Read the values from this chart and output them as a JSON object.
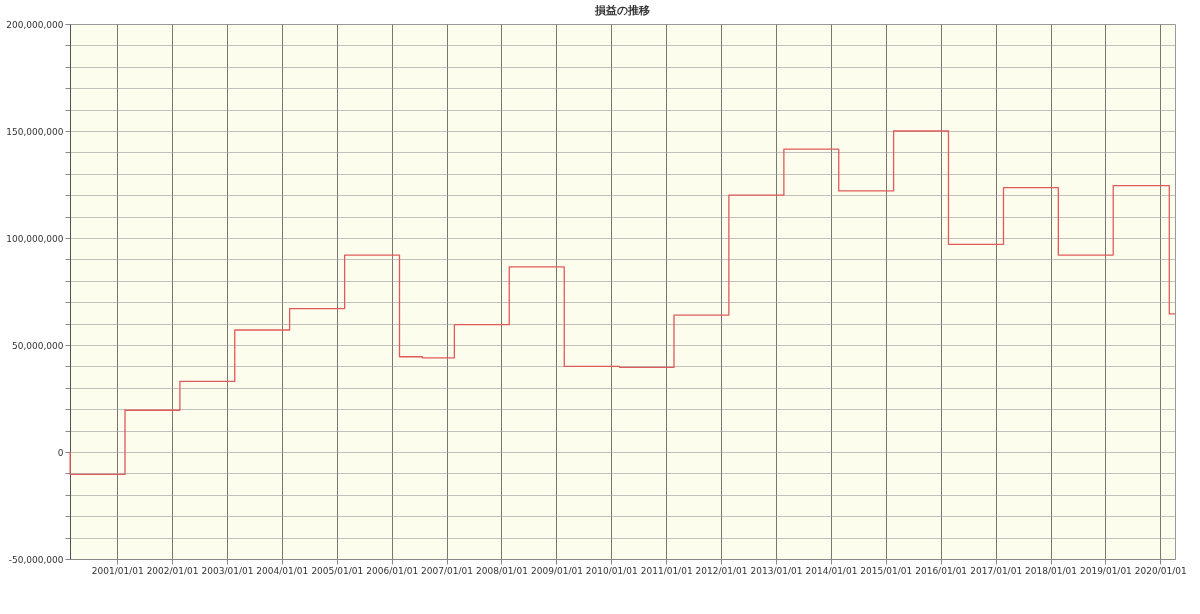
{
  "chart_data": {
    "type": "step",
    "title": "損益の推移",
    "x": [
      "2000-02-22",
      "2000-02-23",
      "2001-02-22",
      "2002-02-22",
      "2003-02-22",
      "2004-02-22",
      "2005-02-22",
      "2006-02-22",
      "2006-07-24",
      "2007-02-22",
      "2008-02-22",
      "2009-02-22",
      "2010-02-26",
      "2011-02-22",
      "2012-02-22",
      "2013-02-22",
      "2014-02-22",
      "2015-02-22",
      "2016-02-22",
      "2017-02-22",
      "2018-02-22",
      "2019-02-22",
      "2020-03-01",
      "2020-04-08"
    ],
    "series": [
      {
        "color": "#e05a5a",
        "values": [
          0,
          -10500000,
          19500000,
          33000000,
          57000000,
          67000000,
          92000000,
          44500000,
          44000000,
          59500000,
          86500000,
          40000000,
          39500000,
          64000000,
          120000000,
          141500000,
          122000000,
          150000000,
          97000000,
          123500000,
          92000000,
          124500000,
          64500000,
          64500000
        ]
      }
    ],
    "xlim": [
      "2000-02-22",
      "2020-04-08"
    ],
    "xticks": [
      {
        "value": "2001-01-01",
        "label": "2001/01/01"
      },
      {
        "value": "2002-01-01",
        "label": "2002/01/01"
      },
      {
        "value": "2003-01-01",
        "label": "2003/01/01"
      },
      {
        "value": "2004-01-01",
        "label": "2004/01/01"
      },
      {
        "value": "2005-01-01",
        "label": "2005/01/01"
      },
      {
        "value": "2006-01-01",
        "label": "2006/01/01"
      },
      {
        "value": "2007-01-01",
        "label": "2007/01/01"
      },
      {
        "value": "2008-01-01",
        "label": "2008/01/01"
      },
      {
        "value": "2009-01-01",
        "label": "2009/01/01"
      },
      {
        "value": "2010-01-01",
        "label": "2010/01/01"
      },
      {
        "value": "2011-01-01",
        "label": "2011/01/01"
      },
      {
        "value": "2012-01-01",
        "label": "2012/01/01"
      },
      {
        "value": "2013-01-01",
        "label": "2013/01/01"
      },
      {
        "value": "2014-01-01",
        "label": "2014/01/01"
      },
      {
        "value": "2015-01-01",
        "label": "2015/01/01"
      },
      {
        "value": "2016-01-01",
        "label": "2016/01/01"
      },
      {
        "value": "2017-01-01",
        "label": "2017/01/01"
      },
      {
        "value": "2018-01-01",
        "label": "2018/01/01"
      },
      {
        "value": "2019-01-01",
        "label": "2019/01/01"
      },
      {
        "value": "2020-01-01",
        "label": "2020/01/01"
      }
    ],
    "ylim": [
      -50000000,
      200000000
    ],
    "yticks": [
      {
        "value": -50000000,
        "label": "-50,000,000"
      },
      {
        "value": -40000000,
        "label": null
      },
      {
        "value": -30000000,
        "label": null
      },
      {
        "value": -20000000,
        "label": null
      },
      {
        "value": -10000000,
        "label": null
      },
      {
        "value": 0,
        "label": "0"
      },
      {
        "value": 10000000,
        "label": null
      },
      {
        "value": 20000000,
        "label": null
      },
      {
        "value": 30000000,
        "label": null
      },
      {
        "value": 40000000,
        "label": null
      },
      {
        "value": 50000000,
        "label": "50,000,000"
      },
      {
        "value": 60000000,
        "label": null
      },
      {
        "value": 70000000,
        "label": null
      },
      {
        "value": 80000000,
        "label": null
      },
      {
        "value": 90000000,
        "label": null
      },
      {
        "value": 100000000,
        "label": "100,000,000"
      },
      {
        "value": 110000000,
        "label": null
      },
      {
        "value": 120000000,
        "label": null
      },
      {
        "value": 130000000,
        "label": null
      },
      {
        "value": 140000000,
        "label": null
      },
      {
        "value": 150000000,
        "label": "150,000,000"
      },
      {
        "value": 160000000,
        "label": null
      },
      {
        "value": 170000000,
        "label": null
      },
      {
        "value": 180000000,
        "label": null
      },
      {
        "value": 190000000,
        "label": null
      },
      {
        "value": 200000000,
        "label": "200,000,000"
      }
    ],
    "grid": true,
    "marker": "none",
    "line_style": "solid"
  }
}
